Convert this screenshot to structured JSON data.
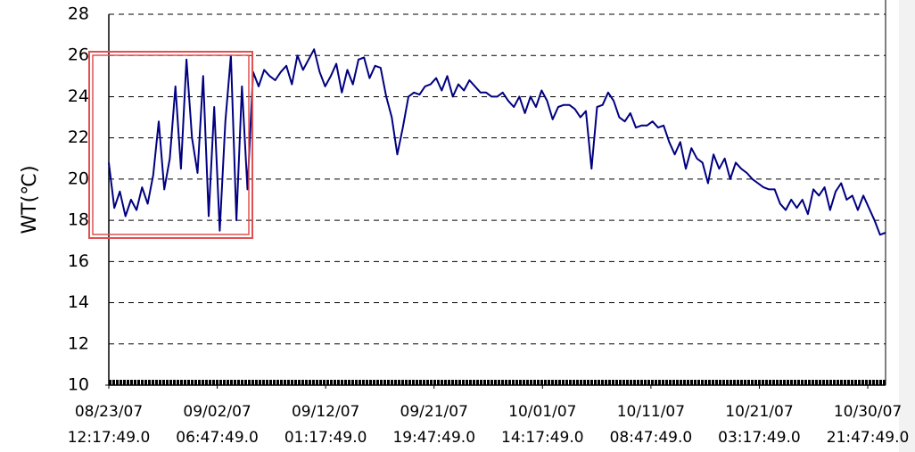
{
  "chart_data": {
    "type": "line",
    "y_label": "WT(℃)",
    "x": [
      "2007-08-23 12:17:49",
      "2007-08-24 00:17:49",
      "2007-08-24 12:17:49",
      "2007-08-25 00:17:49",
      "2007-08-25 12:17:49",
      "2007-08-26 00:17:49",
      "2007-08-26 12:17:49",
      "2007-08-27 00:17:49",
      "2007-08-27 12:17:49",
      "2007-08-28 00:17:49",
      "2007-08-28 12:17:49",
      "2007-08-29 00:17:49",
      "2007-08-29 12:17:49",
      "2007-08-30 00:17:49",
      "2007-08-30 12:17:49",
      "2007-08-31 00:17:49",
      "2007-08-31 12:17:49",
      "2007-09-01 00:17:49",
      "2007-09-01 12:17:49",
      "2007-09-02 00:17:49",
      "2007-09-02 12:17:49",
      "2007-09-03 00:17:49",
      "2007-09-03 12:17:49",
      "2007-09-04 00:17:49",
      "2007-09-04 12:17:49",
      "2007-09-05 00:17:49",
      "2007-09-05 12:17:49",
      "2007-09-06 00:17:49",
      "2007-09-06 12:17:49",
      "2007-09-07 00:17:49",
      "2007-09-07 12:17:49",
      "2007-09-08 00:17:49",
      "2007-09-08 12:17:49",
      "2007-09-09 00:17:49",
      "2007-09-09 12:17:49",
      "2007-09-10 00:17:49",
      "2007-09-10 12:17:49",
      "2007-09-11 00:17:49",
      "2007-09-11 12:17:49",
      "2007-09-12 00:17:49",
      "2007-09-12 12:17:49",
      "2007-09-13 00:17:49",
      "2007-09-13 12:17:49",
      "2007-09-14 00:17:49",
      "2007-09-14 12:17:49",
      "2007-09-15 00:17:49",
      "2007-09-15 12:17:49",
      "2007-09-16 00:17:49",
      "2007-09-16 12:17:49",
      "2007-09-17 00:17:49",
      "2007-09-17 12:17:49",
      "2007-09-18 00:17:49",
      "2007-09-18 12:17:49",
      "2007-09-19 00:17:49",
      "2007-09-19 12:17:49",
      "2007-09-20 00:17:49",
      "2007-09-20 12:17:49",
      "2007-09-21 00:17:49",
      "2007-09-21 12:17:49",
      "2007-09-22 00:17:49",
      "2007-09-22 12:17:49",
      "2007-09-23 00:17:49",
      "2007-09-23 12:17:49",
      "2007-09-24 00:17:49",
      "2007-09-24 12:17:49",
      "2007-09-25 00:17:49",
      "2007-09-25 12:17:49",
      "2007-09-26 00:17:49",
      "2007-09-26 12:17:49",
      "2007-09-27 00:17:49",
      "2007-09-27 12:17:49",
      "2007-09-28 00:17:49",
      "2007-09-28 12:17:49",
      "2007-09-29 00:17:49",
      "2007-09-29 12:17:49",
      "2007-09-30 00:17:49",
      "2007-09-30 12:17:49",
      "2007-10-01 00:17:49",
      "2007-10-01 12:17:49",
      "2007-10-02 00:17:49",
      "2007-10-02 12:17:49",
      "2007-10-03 00:17:49",
      "2007-10-03 12:17:49",
      "2007-10-04 00:17:49",
      "2007-10-04 12:17:49",
      "2007-10-05 00:17:49",
      "2007-10-05 12:17:49",
      "2007-10-06 00:17:49",
      "2007-10-06 12:17:49",
      "2007-10-07 00:17:49",
      "2007-10-07 12:17:49",
      "2007-10-08 00:17:49",
      "2007-10-08 12:17:49",
      "2007-10-09 00:17:49",
      "2007-10-09 12:17:49",
      "2007-10-10 00:17:49",
      "2007-10-10 12:17:49",
      "2007-10-11 00:17:49",
      "2007-10-11 12:17:49",
      "2007-10-12 00:17:49",
      "2007-10-12 12:17:49",
      "2007-10-13 00:17:49",
      "2007-10-13 12:17:49",
      "2007-10-14 00:17:49",
      "2007-10-14 12:17:49",
      "2007-10-15 00:17:49",
      "2007-10-15 12:17:49",
      "2007-10-16 00:17:49",
      "2007-10-16 12:17:49",
      "2007-10-17 00:17:49",
      "2007-10-17 12:17:49",
      "2007-10-18 00:17:49",
      "2007-10-18 12:17:49",
      "2007-10-19 00:17:49",
      "2007-10-19 12:17:49",
      "2007-10-20 00:17:49",
      "2007-10-20 12:17:49",
      "2007-10-21 00:17:49",
      "2007-10-21 12:17:49",
      "2007-10-22 00:17:49",
      "2007-10-22 12:17:49",
      "2007-10-23 00:17:49",
      "2007-10-23 12:17:49",
      "2007-10-24 00:17:49",
      "2007-10-24 12:17:49",
      "2007-10-25 00:17:49",
      "2007-10-25 12:17:49",
      "2007-10-26 00:17:49",
      "2007-10-26 12:17:49",
      "2007-10-27 00:17:49",
      "2007-10-27 12:17:49",
      "2007-10-28 00:17:49",
      "2007-10-28 12:17:49",
      "2007-10-29 00:17:49",
      "2007-10-29 12:17:49",
      "2007-10-30 00:17:49",
      "2007-10-30 12:17:49",
      "2007-10-31 00:17:49",
      "2007-10-31 12:17:49",
      "2007-11-01 00:17:49",
      "2007-11-01 12:17:49"
    ],
    "series": [
      {
        "name": "WT",
        "color": "#000080",
        "values": [
          20.8,
          18.6,
          19.4,
          18.2,
          19.0,
          18.5,
          19.6,
          18.8,
          20.2,
          22.8,
          19.5,
          21.0,
          24.5,
          20.5,
          25.8,
          22.0,
          20.3,
          25.0,
          18.2,
          23.5,
          17.5,
          22.8,
          26.0,
          18.0,
          24.5,
          19.5,
          25.2,
          24.5,
          25.3,
          25.0,
          24.8,
          25.2,
          25.5,
          24.6,
          26.0,
          25.3,
          25.8,
          26.3,
          25.2,
          24.5,
          25.0,
          25.6,
          24.2,
          25.3,
          24.6,
          25.8,
          25.9,
          24.9,
          25.5,
          25.4,
          24.0,
          23.0,
          21.2,
          22.5,
          24.0,
          24.2,
          24.1,
          24.5,
          24.6,
          24.9,
          24.3,
          25.0,
          24.0,
          24.6,
          24.3,
          24.8,
          24.5,
          24.2,
          24.2,
          24.0,
          24.0,
          24.2,
          23.8,
          23.5,
          24.0,
          23.2,
          24.0,
          23.5,
          24.3,
          23.8,
          22.9,
          23.5,
          23.6,
          23.6,
          23.4,
          23.0,
          23.3,
          20.5,
          23.5,
          23.6,
          24.2,
          23.8,
          23.0,
          22.8,
          23.2,
          22.5,
          22.6,
          22.6,
          22.8,
          22.5,
          22.6,
          21.8,
          21.2,
          21.8,
          20.5,
          21.5,
          21.0,
          20.8,
          19.8,
          21.2,
          20.5,
          21.0,
          20.0,
          20.8,
          20.5,
          20.3,
          20.0,
          19.8,
          19.6,
          19.5,
          19.5,
          18.8,
          18.5,
          19.0,
          18.6,
          19.0,
          18.3,
          19.5,
          19.2,
          19.6,
          18.5,
          19.4,
          19.8,
          19.0,
          19.2,
          18.5,
          19.2,
          18.6,
          18.0,
          17.3,
          17.4
        ]
      }
    ],
    "xlim": [
      "2007-08-23 12:17:49",
      "2007-11-01 12:17:49"
    ],
    "xticks": [
      {
        "value": "2007-08-23 12:17:49",
        "label": "08/23/07 12:17:49.0"
      },
      {
        "value": "2007-09-02 06:47:49",
        "label": "09/02/07 06:47:49.0"
      },
      {
        "value": "2007-09-12 01:17:49",
        "label": "09/12/07 01:17:49.0"
      },
      {
        "value": "2007-09-21 19:47:49",
        "label": "09/21/07 19:47:49.0"
      },
      {
        "value": "2007-10-01 14:17:49",
        "label": "10/01/07 14:17:49.0"
      },
      {
        "value": "2007-10-11 08:47:49",
        "label": "10/11/07 08:47:49.0"
      },
      {
        "value": "2007-10-21 03:17:49",
        "label": "10/21/07 03:17:49.0"
      },
      {
        "value": "2007-10-30 21:47:49",
        "label": "10/30/07 21:47:49.0"
      }
    ],
    "ylim": [
      10,
      28
    ],
    "yticks": [
      10,
      12,
      14,
      16,
      18,
      20,
      22,
      24,
      26,
      28
    ],
    "grid": true
  }
}
